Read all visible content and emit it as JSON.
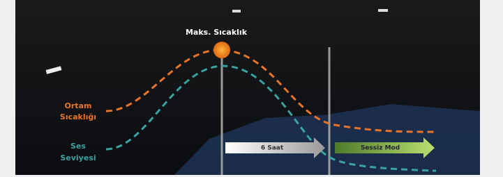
{
  "peak_label": "Maks. Sıcaklık",
  "curves": [
    {
      "label_lines": [
        "Ortam",
        "Sıcaklığı"
      ]
    },
    {
      "label_lines": [
        "Ses",
        "Seviyesi"
      ]
    }
  ],
  "arrows": [
    {
      "label": "6 Saat"
    },
    {
      "label": "Sessiz Mod"
    }
  ]
}
